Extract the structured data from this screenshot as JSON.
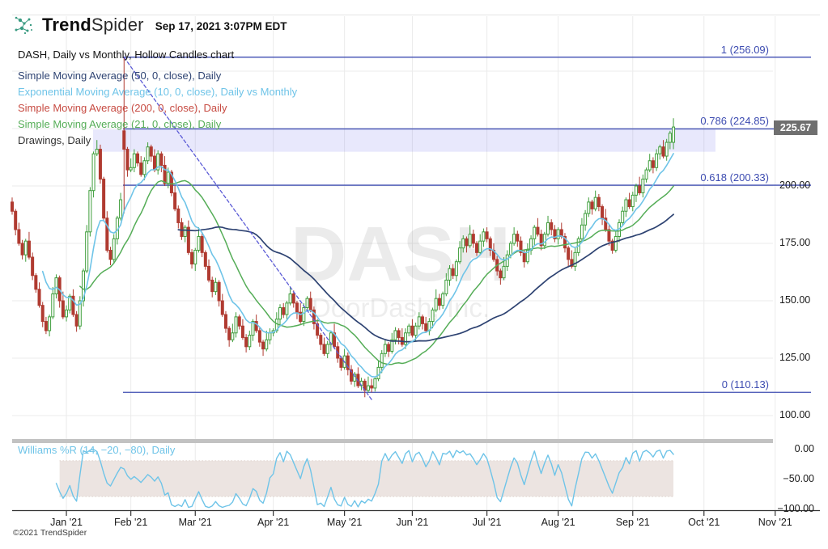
{
  "header": {
    "brand_bold": "Trend",
    "brand_light": "Spider",
    "timestamp": "Sep 17, 2021 3:07PM EDT"
  },
  "title": "DASH, Daily vs Monthly, Hollow Candles chart",
  "legend": {
    "items": [
      {
        "label": "Simple Moving Average (50, 0, close), Daily",
        "color": "#2e4372"
      },
      {
        "label": "Exponential Moving Average (10, 0, close), Daily vs Monthly",
        "color": "#6fc4e8"
      },
      {
        "label": "Simple Moving Average (200, 0, close), Daily",
        "color": "#c74b42"
      },
      {
        "label": "Simple Moving Average (21, 0, close), Daily",
        "color": "#55ad57"
      },
      {
        "label": "Drawings, Daily",
        "color": "#333333"
      }
    ]
  },
  "watermark": {
    "line1": "DASH",
    "line2": "DoorDash, Inc."
  },
  "price_badge": {
    "text": "225.67",
    "bg": "#6f6f6f",
    "fg": "#ffffff"
  },
  "footer": "©2021 TrendSpider",
  "williams": {
    "label": "Williams %R (14, −20, −80), Daily",
    "color": "#6fc4e8",
    "period": 14,
    "upper_band": -20,
    "lower_band": -80,
    "band_color": "#ece4e1",
    "axis_labels": [
      "0.00",
      "−50.00",
      "−100.00"
    ],
    "axis_values": [
      0,
      -50,
      -100
    ]
  },
  "chart_data": {
    "type": "candlestick",
    "symbol": "DASH",
    "timeframe": "Daily vs Monthly",
    "y_axis": {
      "labels": [
        "200.00",
        "175.00",
        "150.00",
        "125.00",
        "100.00"
      ],
      "values": [
        200,
        175,
        150,
        125,
        100
      ],
      "gridline_prices": [
        250,
        225,
        200,
        175,
        150,
        125,
        100
      ],
      "last_price": 225.67
    },
    "x_axis": {
      "months": [
        "Jan '21",
        "Feb '21",
        "Mar '21",
        "Apr '21",
        "May '21",
        "Jun '21",
        "Jul '21",
        "Aug '21",
        "Sep '21",
        "Oct '21",
        "Nov '21"
      ],
      "month_day_offsets": [
        16,
        35,
        54,
        77,
        98,
        118,
        140,
        161,
        183,
        204,
        225
      ]
    },
    "fibonacci": {
      "color": "#3d4cb1",
      "levels": [
        {
          "label": "1 (256.09)",
          "price": 256.09
        },
        {
          "label": "0.786 (224.85)",
          "price": 224.85
        },
        {
          "label": "0.618 (200.33)",
          "price": 200.33
        },
        {
          "label": "0 (110.13)",
          "price": 110.13
        }
      ],
      "zone_top_price": 224.6,
      "zone_bottom_price": 214.9,
      "zone_color": "rgba(110,115,235,0.16)"
    },
    "trendline": {
      "from_day": 33,
      "from_price": 256,
      "to_day": 106,
      "to_price": 107,
      "color": "#5b5bd6"
    },
    "indicators": {
      "ema10": {
        "period": 10,
        "color": "#6fc4e8"
      },
      "sma21": {
        "period": 21,
        "color": "#55ad57"
      },
      "sma50": {
        "period": 50,
        "color": "#2e4372"
      }
    },
    "candles": {
      "up_color": "#3f9e3c",
      "down_color": "#b03a30",
      "first_open": 193,
      "closes": [
        189,
        181,
        175,
        170,
        176,
        169,
        161,
        155,
        148,
        141,
        137,
        143,
        153,
        160,
        150,
        143,
        146,
        152,
        144,
        139,
        150,
        163,
        180,
        198,
        214,
        216,
        203,
        186,
        172,
        168,
        177,
        186,
        194,
        216,
        207,
        208,
        214,
        210,
        205,
        211,
        217,
        213,
        207,
        214,
        209,
        201,
        206,
        197,
        190,
        184,
        178,
        182,
        171,
        166,
        172,
        178,
        171,
        165,
        159,
        154,
        158,
        150,
        144,
        138,
        133,
        136,
        143,
        139,
        134,
        130,
        135,
        141,
        137,
        132,
        129,
        133,
        136,
        137,
        142,
        147,
        144,
        149,
        153,
        149,
        145,
        141,
        147,
        151,
        146,
        140,
        135,
        131,
        127,
        131,
        136,
        130,
        125,
        121,
        126,
        120,
        115,
        118,
        113,
        115,
        111,
        113,
        112,
        116,
        121,
        127,
        131,
        128,
        133,
        137,
        134,
        131,
        136,
        139,
        135,
        139,
        143,
        140,
        137,
        141,
        146,
        151,
        148,
        153,
        159,
        164,
        161,
        167,
        173,
        177,
        174,
        179,
        175,
        171,
        176,
        180,
        177,
        172,
        168,
        163,
        160,
        165,
        170,
        175,
        179,
        176,
        171,
        167,
        172,
        177,
        182,
        179,
        174,
        179,
        184,
        181,
        177,
        181,
        178,
        173,
        168,
        165,
        171,
        177,
        183,
        188,
        193,
        190,
        195,
        191,
        186,
        181,
        176,
        172,
        178,
        184,
        189,
        194,
        191,
        196,
        200,
        197,
        203,
        207,
        211,
        208,
        214,
        217,
        213,
        219,
        223,
        225.67
      ],
      "wick_up": [
        2,
        1,
        3,
        1.5,
        1,
        4,
        2,
        1,
        3,
        1.5
      ],
      "wick_down": [
        1.5,
        2.5,
        1,
        2,
        3,
        1,
        2,
        1.5,
        1,
        2.5
      ],
      "overrides": {
        "33": [
          224,
          256.1,
          188,
          216
        ],
        "106": [
          113,
          116,
          110.1,
          112
        ],
        "195": [
          219,
          229.5,
          216,
          225.67
        ]
      }
    }
  }
}
